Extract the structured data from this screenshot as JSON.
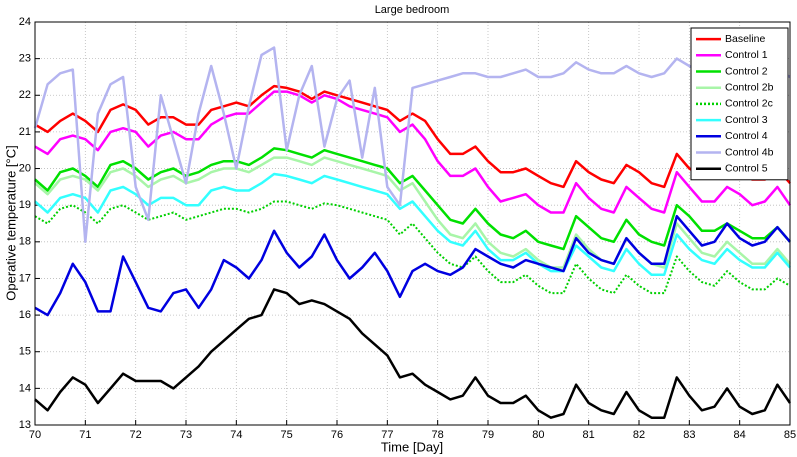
{
  "chart_data": {
    "type": "line",
    "title": "Large bedroom",
    "x_label": "Time [Day]",
    "y_label": "Operative temperature [°C]",
    "xlim": [
      70,
      85
    ],
    "ylim": [
      13,
      24
    ],
    "xticks": [
      70,
      71,
      72,
      73,
      74,
      75,
      76,
      77,
      78,
      79,
      80,
      81,
      82,
      83,
      84,
      85
    ],
    "yticks": [
      13,
      14,
      15,
      16,
      17,
      18,
      19,
      20,
      21,
      22,
      23,
      24
    ],
    "grid": true,
    "legend": "upper right",
    "x": [
      70,
      70.25,
      70.5,
      70.75,
      71,
      71.25,
      71.5,
      71.75,
      72,
      72.25,
      72.5,
      72.75,
      73,
      73.25,
      73.5,
      73.75,
      74,
      74.25,
      74.5,
      74.75,
      75,
      75.25,
      75.5,
      75.75,
      76,
      76.25,
      76.5,
      76.75,
      77,
      77.25,
      77.5,
      77.75,
      78,
      78.25,
      78.5,
      78.75,
      79,
      79.25,
      79.5,
      79.75,
      80,
      80.25,
      80.5,
      80.75,
      81,
      81.25,
      81.5,
      81.75,
      82,
      82.25,
      82.5,
      82.75,
      83,
      83.25,
      83.5,
      83.75,
      84,
      84.25,
      84.5,
      84.75,
      85
    ],
    "series": [
      {
        "name": "Baseline",
        "color": "#ff0000",
        "style": "solid",
        "values": [
          21.2,
          21.0,
          21.3,
          21.5,
          21.3,
          21.0,
          21.6,
          21.75,
          21.6,
          21.2,
          21.4,
          21.4,
          21.2,
          21.2,
          21.6,
          21.7,
          21.8,
          21.7,
          22.0,
          22.25,
          22.2,
          22.1,
          21.9,
          22.1,
          22.0,
          21.9,
          21.8,
          21.7,
          21.6,
          21.3,
          21.5,
          21.3,
          20.8,
          20.4,
          20.4,
          20.6,
          20.2,
          19.9,
          19.9,
          20.0,
          19.8,
          19.6,
          19.5,
          20.2,
          19.9,
          19.7,
          19.6,
          20.1,
          19.9,
          19.6,
          19.5,
          20.4,
          20.0,
          19.8,
          19.8,
          20.1,
          19.9,
          19.7,
          19.7,
          20.0,
          19.6
        ]
      },
      {
        "name": "Control 1",
        "color": "#ff00ff",
        "style": "solid",
        "values": [
          20.6,
          20.4,
          20.8,
          20.9,
          20.8,
          20.5,
          21.0,
          21.1,
          21.0,
          20.6,
          20.9,
          21.0,
          20.8,
          20.8,
          21.2,
          21.4,
          21.5,
          21.5,
          21.8,
          22.1,
          22.1,
          22.0,
          21.8,
          22.0,
          21.9,
          21.7,
          21.6,
          21.5,
          21.4,
          21.0,
          21.2,
          20.8,
          20.2,
          19.8,
          19.8,
          20.0,
          19.5,
          19.1,
          19.2,
          19.3,
          19.0,
          18.8,
          18.8,
          19.6,
          19.2,
          18.9,
          18.8,
          19.5,
          19.2,
          18.9,
          18.8,
          19.9,
          19.5,
          19.1,
          19.1,
          19.5,
          19.3,
          19.0,
          19.1,
          19.5,
          19.0
        ]
      },
      {
        "name": "Control 2",
        "color": "#00e000",
        "style": "solid",
        "values": [
          19.7,
          19.4,
          19.9,
          20.0,
          19.8,
          19.5,
          20.1,
          20.2,
          20.0,
          19.7,
          19.9,
          20.0,
          19.8,
          19.9,
          20.1,
          20.2,
          20.2,
          20.1,
          20.3,
          20.55,
          20.5,
          20.4,
          20.3,
          20.5,
          20.4,
          20.3,
          20.2,
          20.1,
          20.0,
          19.6,
          19.8,
          19.4,
          19.0,
          18.6,
          18.5,
          18.9,
          18.5,
          18.2,
          18.1,
          18.3,
          18.0,
          17.9,
          17.8,
          18.7,
          18.4,
          18.1,
          18.0,
          18.6,
          18.2,
          18.0,
          17.9,
          19.0,
          18.7,
          18.3,
          18.3,
          18.5,
          18.3,
          18.1,
          18.1,
          18.4,
          18.0
        ]
      },
      {
        "name": "Control 2b",
        "color": "#a8f5a8",
        "style": "solid",
        "values": [
          19.6,
          19.3,
          19.7,
          19.8,
          19.7,
          19.4,
          19.9,
          20.0,
          19.8,
          19.5,
          19.7,
          19.8,
          19.6,
          19.7,
          19.9,
          20.0,
          20.0,
          19.9,
          20.1,
          20.3,
          20.3,
          20.2,
          20.1,
          20.3,
          20.2,
          20.1,
          20.0,
          19.9,
          19.8,
          19.4,
          19.6,
          19.1,
          18.6,
          18.2,
          18.1,
          18.5,
          18.0,
          17.7,
          17.6,
          17.8,
          17.5,
          17.3,
          17.3,
          18.2,
          17.8,
          17.5,
          17.4,
          18.1,
          17.7,
          17.4,
          17.3,
          18.5,
          18.1,
          17.7,
          17.6,
          18.0,
          17.7,
          17.4,
          17.4,
          17.8,
          17.4
        ]
      },
      {
        "name": "Control 2c",
        "color": "#00d000",
        "style": "dotted",
        "values": [
          18.7,
          18.5,
          18.9,
          19.0,
          18.8,
          18.5,
          18.9,
          19.0,
          18.8,
          18.6,
          18.7,
          18.8,
          18.6,
          18.7,
          18.8,
          18.9,
          18.9,
          18.8,
          18.9,
          19.1,
          19.1,
          19.0,
          18.9,
          19.05,
          19.0,
          18.9,
          18.8,
          18.7,
          18.6,
          18.2,
          18.5,
          18.1,
          17.7,
          17.4,
          17.3,
          17.6,
          17.2,
          16.9,
          16.9,
          17.1,
          16.8,
          16.6,
          16.6,
          17.4,
          17.0,
          16.7,
          16.6,
          17.1,
          16.8,
          16.6,
          16.6,
          17.6,
          17.2,
          16.9,
          16.8,
          17.2,
          16.9,
          16.7,
          16.7,
          17.0,
          16.8
        ]
      },
      {
        "name": "Control 3",
        "color": "#33ffff",
        "style": "solid",
        "values": [
          19.1,
          18.8,
          19.2,
          19.3,
          19.2,
          18.8,
          19.4,
          19.5,
          19.3,
          19.0,
          19.2,
          19.2,
          19.0,
          19.0,
          19.4,
          19.5,
          19.4,
          19.4,
          19.6,
          19.85,
          19.8,
          19.7,
          19.6,
          19.8,
          19.7,
          19.6,
          19.5,
          19.4,
          19.3,
          18.9,
          19.1,
          18.7,
          18.3,
          18.0,
          17.9,
          18.3,
          17.8,
          17.5,
          17.5,
          17.7,
          17.4,
          17.2,
          17.2,
          17.9,
          17.6,
          17.3,
          17.2,
          17.8,
          17.4,
          17.1,
          17.1,
          18.2,
          17.8,
          17.5,
          17.4,
          17.8,
          17.5,
          17.3,
          17.3,
          17.7,
          17.3
        ]
      },
      {
        "name": "Control 4",
        "color": "#0000e0",
        "style": "solid",
        "values": [
          16.2,
          16.0,
          16.6,
          17.4,
          16.9,
          16.1,
          16.1,
          17.6,
          16.9,
          16.2,
          16.1,
          16.6,
          16.7,
          16.2,
          16.7,
          17.5,
          17.3,
          17.0,
          17.5,
          18.3,
          17.7,
          17.3,
          17.6,
          18.2,
          17.5,
          17.0,
          17.3,
          17.7,
          17.2,
          16.5,
          17.2,
          17.4,
          17.2,
          17.1,
          17.3,
          17.8,
          17.6,
          17.4,
          17.3,
          17.5,
          17.4,
          17.3,
          17.2,
          18.1,
          17.7,
          17.5,
          17.4,
          18.1,
          17.7,
          17.4,
          17.4,
          18.7,
          18.3,
          17.9,
          18.0,
          18.5,
          18.1,
          17.9,
          18.0,
          18.4,
          18.0
        ]
      },
      {
        "name": "Control 4b",
        "color": "#b4b4f0",
        "style": "solid",
        "values": [
          21.1,
          22.3,
          22.6,
          22.7,
          18.0,
          21.5,
          22.3,
          22.5,
          19.5,
          18.6,
          22.0,
          20.8,
          19.6,
          21.5,
          22.8,
          21.5,
          20.0,
          21.7,
          23.1,
          23.3,
          20.5,
          22.0,
          22.8,
          20.6,
          21.9,
          22.4,
          20.3,
          22.2,
          19.5,
          19.0,
          22.2,
          22.3,
          22.4,
          22.5,
          22.6,
          22.6,
          22.5,
          22.5,
          22.6,
          22.7,
          22.5,
          22.5,
          22.6,
          22.9,
          22.7,
          22.6,
          22.6,
          22.8,
          22.6,
          22.5,
          22.6,
          23.0,
          22.8,
          22.6,
          22.6,
          22.7,
          22.6,
          22.5,
          22.5,
          22.7,
          22.5
        ]
      },
      {
        "name": "Control 5",
        "color": "#000000",
        "style": "solid",
        "values": [
          13.7,
          13.4,
          13.9,
          14.3,
          14.1,
          13.6,
          14.0,
          14.4,
          14.2,
          14.2,
          14.2,
          14.0,
          14.3,
          14.6,
          15.0,
          15.3,
          15.6,
          15.9,
          16.0,
          16.7,
          16.6,
          16.3,
          16.4,
          16.3,
          16.1,
          15.9,
          15.5,
          15.2,
          14.9,
          14.3,
          14.4,
          14.1,
          13.9,
          13.7,
          13.8,
          14.3,
          13.8,
          13.6,
          13.6,
          13.8,
          13.4,
          13.2,
          13.3,
          14.1,
          13.6,
          13.4,
          13.3,
          13.9,
          13.4,
          13.2,
          13.2,
          14.3,
          13.8,
          13.4,
          13.5,
          14.0,
          13.5,
          13.3,
          13.4,
          14.1,
          13.6
        ]
      }
    ]
  }
}
